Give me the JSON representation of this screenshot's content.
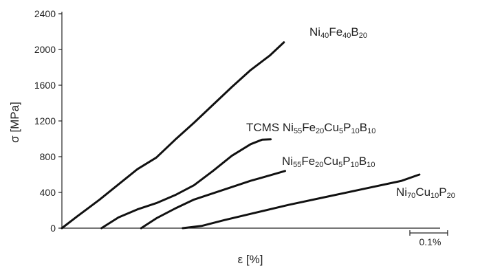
{
  "chart_data": {
    "type": "line",
    "xlabel": "ε [%]",
    "ylabel": "σ [MPa]",
    "ylim": [
      0,
      2400
    ],
    "yticks": [
      0,
      400,
      800,
      1200,
      1600,
      2000,
      2400
    ],
    "xlim": [
      0,
      1.1
    ],
    "scale_bar_label": "0.1%",
    "grid": false,
    "legend": "none",
    "series": [
      {
        "label_parts": [
          {
            "t": "Ni",
            "sub": false
          },
          {
            "t": "40",
            "sub": true
          },
          {
            "t": "Fe",
            "sub": false
          },
          {
            "t": "40",
            "sub": true
          },
          {
            "t": "B",
            "sub": false
          },
          {
            "t": "20",
            "sub": true
          }
        ],
        "points": [
          [
            0,
            0
          ],
          [
            0.04,
            130
          ],
          [
            0.1,
            320
          ],
          [
            0.15,
            490
          ],
          [
            0.2,
            660
          ],
          [
            0.25,
            790
          ],
          [
            0.3,
            990
          ],
          [
            0.35,
            1180
          ],
          [
            0.4,
            1380
          ],
          [
            0.45,
            1580
          ],
          [
            0.5,
            1770
          ],
          [
            0.55,
            1930
          ],
          [
            0.588,
            2080
          ]
        ]
      },
      {
        "label_parts": [
          {
            "t": "TCMS Ni",
            "sub": false
          },
          {
            "t": "55",
            "sub": true
          },
          {
            "t": "Fe",
            "sub": false
          },
          {
            "t": "20",
            "sub": true
          },
          {
            "t": "Cu",
            "sub": false
          },
          {
            "t": "5",
            "sub": true
          },
          {
            "t": "P",
            "sub": false
          },
          {
            "t": "10",
            "sub": true
          },
          {
            "t": "B",
            "sub": false
          },
          {
            "t": "10",
            "sub": true
          }
        ],
        "points": [
          [
            0.105,
            0
          ],
          [
            0.15,
            120
          ],
          [
            0.2,
            210
          ],
          [
            0.25,
            280
          ],
          [
            0.3,
            370
          ],
          [
            0.35,
            480
          ],
          [
            0.4,
            640
          ],
          [
            0.45,
            810
          ],
          [
            0.5,
            940
          ],
          [
            0.53,
            990
          ],
          [
            0.553,
            995
          ]
        ]
      },
      {
        "label_parts": [
          {
            "t": "Ni",
            "sub": false
          },
          {
            "t": "55",
            "sub": true
          },
          {
            "t": "Fe",
            "sub": false
          },
          {
            "t": "20",
            "sub": true
          },
          {
            "t": "Cu",
            "sub": false
          },
          {
            "t": "5",
            "sub": true
          },
          {
            "t": "P",
            "sub": false
          },
          {
            "t": "10",
            "sub": true
          },
          {
            "t": "B",
            "sub": false
          },
          {
            "t": "10",
            "sub": true
          }
        ],
        "points": [
          [
            0.21,
            0
          ],
          [
            0.25,
            110
          ],
          [
            0.3,
            220
          ],
          [
            0.35,
            320
          ],
          [
            0.4,
            390
          ],
          [
            0.45,
            460
          ],
          [
            0.5,
            530
          ],
          [
            0.55,
            590
          ],
          [
            0.591,
            640
          ]
        ]
      },
      {
        "label_parts": [
          {
            "t": "Ni",
            "sub": false
          },
          {
            "t": "70",
            "sub": true
          },
          {
            "t": "Cu",
            "sub": false
          },
          {
            "t": "10",
            "sub": true
          },
          {
            "t": "P",
            "sub": false
          },
          {
            "t": "20",
            "sub": true
          }
        ],
        "points": [
          [
            0.32,
            0
          ],
          [
            0.37,
            25
          ],
          [
            0.43,
            90
          ],
          [
            0.5,
            160
          ],
          [
            0.6,
            260
          ],
          [
            0.7,
            350
          ],
          [
            0.8,
            440
          ],
          [
            0.9,
            530
          ],
          [
            0.9,
            530
          ],
          [
            0.947,
            600
          ]
        ]
      }
    ]
  }
}
